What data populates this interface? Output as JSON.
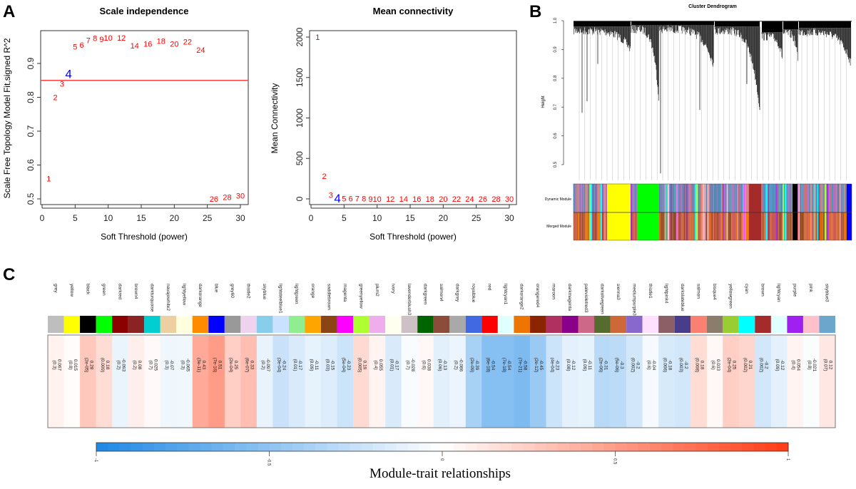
{
  "panels": {
    "a": "A",
    "b": "B",
    "c": "C"
  },
  "chart_data": [
    {
      "type": "scatter",
      "title": "Scale independence",
      "xlabel": "Soft Threshold (power)",
      "ylabel": "Scale Free Topology Model Fit,signed R^2",
      "xlim": [
        0,
        30
      ],
      "ylim": [
        0.5,
        0.97
      ],
      "xticks": [
        "0",
        "5",
        "10",
        "15",
        "20",
        "25",
        "30"
      ],
      "yticks": [
        "0.5",
        "0.6",
        "0.7",
        "0.8",
        "0.9"
      ],
      "hline": 0.85,
      "hline_color": "#FF4040",
      "point_color": "#FF0000",
      "highlight_color": "#0000FF",
      "highlight_power": 4,
      "x": [
        1,
        2,
        3,
        4,
        5,
        6,
        7,
        8,
        9,
        10,
        12,
        14,
        16,
        18,
        20,
        22,
        24,
        26,
        28,
        30
      ],
      "y": [
        0.56,
        0.8,
        0.84,
        0.87,
        0.95,
        0.955,
        0.968,
        0.975,
        0.972,
        0.976,
        0.976,
        0.953,
        0.958,
        0.966,
        0.958,
        0.964,
        0.94,
        0.5,
        0.505,
        0.51
      ]
    },
    {
      "type": "scatter",
      "title": "Mean connectivity",
      "xlabel": "Soft Threshold (power)",
      "ylabel": "Mean Connectivity",
      "xlim": [
        0,
        30
      ],
      "ylim": [
        0,
        2000
      ],
      "xticks": [
        "0",
        "5",
        "10",
        "15",
        "20",
        "25",
        "30"
      ],
      "yticks": [
        "0",
        "500",
        "1000",
        "1500",
        "2000"
      ],
      "point_color": "#FF0000",
      "highlight_color": "#0000FF",
      "highlight_power": 4,
      "x": [
        1,
        2,
        3,
        4,
        5,
        6,
        7,
        8,
        9,
        10,
        12,
        14,
        16,
        18,
        20,
        22,
        24,
        26,
        28,
        30
      ],
      "y": [
        2000,
        280,
        50,
        10,
        5,
        4,
        3,
        3,
        2,
        2,
        1,
        1,
        1,
        1,
        0,
        0,
        0,
        0,
        0,
        0
      ]
    },
    {
      "type": "dendrogram",
      "title": "Cluster Dendrogram",
      "ylabel": "Height",
      "ylim": [
        0.45,
        1.0
      ],
      "yticks": [
        "0.5",
        "0.6",
        "0.7",
        "0.8",
        "0.9",
        "1.0"
      ],
      "row_labels": [
        "Dynamic Module",
        "Merged Module"
      ],
      "major_blocks": [
        "yellow",
        "green",
        "brown",
        "black",
        "blue"
      ]
    },
    {
      "type": "heatmap",
      "title": "Module-trait relationships",
      "colorbar": {
        "ticks": [
          "-1",
          "-0.5",
          "0",
          "0.5",
          "1"
        ],
        "low": "#1E88E5",
        "mid": "#FFFFFF",
        "high": "#FF3A12"
      },
      "modules": [
        {
          "name": "grey",
          "color": "#BEBEBE",
          "r": "0.067",
          "p": "(0.3)"
        },
        {
          "name": "yellow",
          "color": "#FFFF00",
          "r": "0.015",
          "p": "(0.8)"
        },
        {
          "name": "black",
          "color": "#000000",
          "r": "0.28",
          "p": "(2e-05)"
        },
        {
          "name": "green",
          "color": "#00FF00",
          "r": "0.18",
          "p": "(0.009)"
        },
        {
          "name": "darkred",
          "color": "#8B0000",
          "r": "-0.093",
          "p": "(0.2)"
        },
        {
          "name": "brown4",
          "color": "#8B2323",
          "r": "0.08",
          "p": "(0.2)"
        },
        {
          "name": "darkturquoise",
          "color": "#00CED1",
          "r": "0.025",
          "p": "(0.7)"
        },
        {
          "name": "navajowhite2",
          "color": "#EECFA1",
          "r": "-0.07",
          "p": "(0.3)"
        },
        {
          "name": "lightyellow",
          "color": "#FFFFE0",
          "r": "-0.065",
          "p": "(0.3)"
        },
        {
          "name": "darkorange",
          "color": "#FF8C00",
          "r": "0.43",
          "p": "(3e-11)"
        },
        {
          "name": "blue",
          "color": "#0000FF",
          "r": "0.51",
          "p": "(7e-16)"
        },
        {
          "name": "grey60",
          "color": "#999999",
          "r": "0.25",
          "p": "(2e-04)"
        },
        {
          "name": "thistle2",
          "color": "#EED2EE",
          "r": "0.33",
          "p": "(6e-07)"
        },
        {
          "name": "skyblue",
          "color": "#87CEEB",
          "r": "-0.097",
          "p": "(0.2)"
        },
        {
          "name": "lightsteelblue1",
          "color": "#CAE1FF",
          "r": "-0.24",
          "p": "(3e-04)"
        },
        {
          "name": "lightgreen",
          "color": "#90EE90",
          "r": "-0.17",
          "p": "(0.01)"
        },
        {
          "name": "orange",
          "color": "#FFA500",
          "r": "-0.11",
          "p": "(0.09)"
        },
        {
          "name": "saddlebrown",
          "color": "#8B4513",
          "r": "-0.15",
          "p": "(0.03)"
        },
        {
          "name": "magenta",
          "color": "#FF00FF",
          "r": "-0.23",
          "p": "(5e-04)"
        },
        {
          "name": "greenyellow",
          "color": "#ADFF2F",
          "r": "0.19",
          "p": "(0.005)"
        },
        {
          "name": "plum2",
          "color": "#EEAEEE",
          "r": "0.055",
          "p": "(0.4)"
        },
        {
          "name": "ivory",
          "color": "#FFFFF0",
          "r": "-0.17",
          "p": "(0.01)"
        },
        {
          "name": "lavenderblush3",
          "color": "#CDC1C5",
          "r": "-0.028",
          "p": "(0.7)"
        },
        {
          "name": "darkgreen",
          "color": "#006400",
          "r": "0.038",
          "p": "(0.6)"
        },
        {
          "name": "salmon4",
          "color": "#8B4C39",
          "r": "-0.13",
          "p": "(0.06)"
        },
        {
          "name": "darkgrey",
          "color": "#A9A9A9",
          "r": "-0.086",
          "p": "(0.2)"
        },
        {
          "name": "royalblue",
          "color": "#4169E1",
          "r": "-0.39",
          "p": "(2e-09)"
        },
        {
          "name": "red",
          "color": "#FF0000",
          "r": "-0.54",
          "p": "(6e-18)"
        },
        {
          "name": "lightcyan1",
          "color": "#E0FFFF",
          "r": "-0.54",
          "p": "(7e-18)"
        },
        {
          "name": "darkorange2",
          "color": "#EE7600",
          "r": "-0.58",
          "p": "(7e-21)"
        },
        {
          "name": "orangered4",
          "color": "#8B2500",
          "r": "-0.45",
          "p": "(2e-12)"
        },
        {
          "name": "maroon",
          "color": "#B03060",
          "r": "-0.23",
          "p": "(4e-04)"
        },
        {
          "name": "darkmagenta",
          "color": "#8B008B",
          "r": "-0.12",
          "p": "(0.08)"
        },
        {
          "name": "palevioletred3",
          "color": "#CD6889",
          "r": "-0.11",
          "p": "(0.09)"
        },
        {
          "name": "darkolivegreen",
          "color": "#556B2F",
          "r": "-0.31",
          "p": "(2e-06)"
        },
        {
          "name": "sienna3",
          "color": "#CD6839",
          "r": "-0.3",
          "p": "(5e-06)"
        },
        {
          "name": "mediumpurple3",
          "color": "#8968CD",
          "r": "-0.2",
          "p": "(0.002)"
        },
        {
          "name": "thistle1",
          "color": "#FFE1FF",
          "r": "-0.04",
          "p": "(0.6)"
        },
        {
          "name": "lightpink4",
          "color": "#8B5F65",
          "r": "-0.18",
          "p": "(0.006)"
        },
        {
          "name": "darkslateblue",
          "color": "#483D8B",
          "r": "-0.2",
          "p": "(0.003)"
        },
        {
          "name": "salmon",
          "color": "#FA8072",
          "r": "0.18",
          "p": "(0.008)"
        },
        {
          "name": "bisque4",
          "color": "#8B7D6B",
          "r": "0.033",
          "p": "(0.6)"
        },
        {
          "name": "yellowgreen",
          "color": "#9ACD32",
          "r": "0.25",
          "p": "(2e-04)"
        },
        {
          "name": "cyan",
          "color": "#00FFFF",
          "r": "0.21",
          "p": "(0.002)"
        },
        {
          "name": "brown",
          "color": "#A52A2A",
          "r": "-0.2",
          "p": "(0.002)"
        },
        {
          "name": "lightcyan",
          "color": "#E0FFFF",
          "r": "-0.12",
          "p": "(0.09)"
        },
        {
          "name": "purple",
          "color": "#A020F0",
          "r": "0.054",
          "p": "(0.4)"
        },
        {
          "name": "pink",
          "color": "#FFC0CB",
          "r": "-0.021",
          "p": "(0.8)"
        },
        {
          "name": "skyblue3",
          "color": "#6CA6CD",
          "r": "0.12",
          "p": "(0.07)"
        }
      ]
    }
  ]
}
